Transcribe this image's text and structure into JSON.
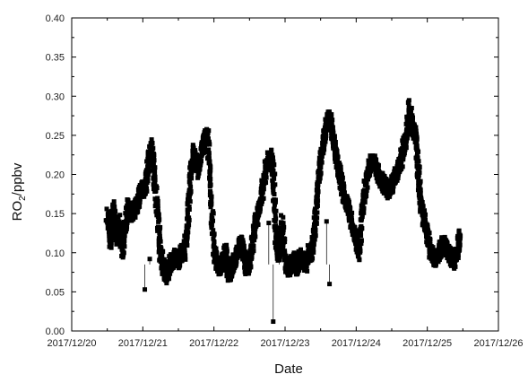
{
  "chart_data": {
    "type": "scatter",
    "title": "",
    "xlabel": "Date",
    "ylabel_main": "RO",
    "ylabel_sub": "2",
    "ylabel_tail": "/ppbv",
    "xlim": [
      "2017-12-20",
      "2017-12-26"
    ],
    "ylim": [
      0.0,
      0.4
    ],
    "x_ticks": [
      "2017/12/20",
      "2017/12/21",
      "2017/12/22",
      "2017/12/23",
      "2017/12/24",
      "2017/12/25",
      "2017/12/26"
    ],
    "y_ticks": [
      "0.00",
      "0.05",
      "0.10",
      "0.15",
      "0.20",
      "0.25",
      "0.30",
      "0.35",
      "0.40"
    ],
    "grid": false,
    "legend": "none",
    "marker_color": "#000000",
    "series": [
      {
        "x": [
          "2017-12-20 12:00",
          "2017-12-20 13:00",
          "2017-12-20 14:00",
          "2017-12-20 15:00",
          "2017-12-20 16:00",
          "2017-12-20 17:00",
          "2017-12-20 18:00",
          "2017-12-20 19:00",
          "2017-12-20 20:00",
          "2017-12-20 21:00",
          "2017-12-20 22:00",
          "2017-12-20 23:00",
          "2017-12-21 00:00",
          "2017-12-21 01:00",
          "2017-12-21 02:00",
          "2017-12-21 03:00",
          "2017-12-21 04:00",
          "2017-12-21 05:00",
          "2017-12-21 06:00",
          "2017-12-21 07:00",
          "2017-12-21 08:00",
          "2017-12-21 09:00",
          "2017-12-21 10:00",
          "2017-12-21 11:00",
          "2017-12-21 12:00",
          "2017-12-21 13:00",
          "2017-12-21 14:00",
          "2017-12-21 15:00",
          "2017-12-21 16:00",
          "2017-12-21 17:00",
          "2017-12-21 18:00",
          "2017-12-21 19:00",
          "2017-12-21 20:00",
          "2017-12-21 21:00",
          "2017-12-21 22:00",
          "2017-12-21 23:00",
          "2017-12-22 00:00",
          "2017-12-22 01:00",
          "2017-12-22 02:00",
          "2017-12-22 03:00",
          "2017-12-22 04:00",
          "2017-12-22 05:00",
          "2017-12-22 06:00",
          "2017-12-22 07:00",
          "2017-12-22 08:00",
          "2017-12-22 09:00",
          "2017-12-22 10:00",
          "2017-12-22 11:00",
          "2017-12-22 12:00",
          "2017-12-22 13:00",
          "2017-12-22 14:00",
          "2017-12-22 15:00",
          "2017-12-22 16:00",
          "2017-12-22 17:00",
          "2017-12-22 18:00",
          "2017-12-22 19:00",
          "2017-12-22 20:00",
          "2017-12-22 21:00",
          "2017-12-22 22:00",
          "2017-12-22 23:00",
          "2017-12-23 00:00",
          "2017-12-23 01:00",
          "2017-12-23 02:00",
          "2017-12-23 03:00",
          "2017-12-23 04:00",
          "2017-12-23 05:00",
          "2017-12-23 06:00",
          "2017-12-23 07:00",
          "2017-12-23 08:00",
          "2017-12-23 09:00",
          "2017-12-23 10:00",
          "2017-12-23 11:00",
          "2017-12-23 12:00",
          "2017-12-23 13:00",
          "2017-12-23 14:00",
          "2017-12-23 15:00",
          "2017-12-23 16:00",
          "2017-12-23 17:00",
          "2017-12-23 18:00",
          "2017-12-23 19:00",
          "2017-12-23 20:00",
          "2017-12-23 21:00",
          "2017-12-23 22:00",
          "2017-12-23 23:00",
          "2017-12-24 00:00",
          "2017-12-24 01:00",
          "2017-12-24 02:00",
          "2017-12-24 03:00",
          "2017-12-24 04:00",
          "2017-12-24 05:00",
          "2017-12-24 06:00",
          "2017-12-24 07:00",
          "2017-12-24 08:00",
          "2017-12-24 09:00",
          "2017-12-24 10:00",
          "2017-12-24 11:00",
          "2017-12-24 12:00",
          "2017-12-24 13:00",
          "2017-12-24 14:00",
          "2017-12-24 15:00",
          "2017-12-24 16:00",
          "2017-12-24 17:00",
          "2017-12-24 18:00",
          "2017-12-24 19:00",
          "2017-12-24 20:00",
          "2017-12-24 21:00",
          "2017-12-24 22:00",
          "2017-12-24 23:00",
          "2017-12-25 00:00",
          "2017-12-25 01:00",
          "2017-12-25 02:00",
          "2017-12-25 03:00",
          "2017-12-25 04:00",
          "2017-12-25 05:00",
          "2017-12-25 06:00",
          "2017-12-25 07:00",
          "2017-12-25 08:00",
          "2017-12-25 09:00",
          "2017-12-25 10:00",
          "2017-12-25 11:00"
        ],
        "y": [
          0.15,
          0.11,
          0.16,
          0.12,
          0.14,
          0.1,
          0.13,
          0.16,
          0.15,
          0.155,
          0.16,
          0.175,
          0.18,
          0.185,
          0.22,
          0.235,
          0.19,
          0.15,
          0.1,
          0.08,
          0.07,
          0.085,
          0.09,
          0.095,
          0.09,
          0.1,
          0.1,
          0.13,
          0.19,
          0.23,
          0.215,
          0.205,
          0.235,
          0.25,
          0.245,
          0.18,
          0.1,
          0.085,
          0.08,
          0.09,
          0.1,
          0.07,
          0.08,
          0.09,
          0.1,
          0.11,
          0.1,
          0.08,
          0.09,
          0.11,
          0.14,
          0.15,
          0.17,
          0.195,
          0.215,
          0.225,
          0.205,
          0.12,
          0.095,
          0.14,
          0.09,
          0.08,
          0.085,
          0.09,
          0.08,
          0.095,
          0.09,
          0.085,
          0.1,
          0.1,
          0.13,
          0.18,
          0.22,
          0.245,
          0.265,
          0.275,
          0.25,
          0.225,
          0.21,
          0.19,
          0.17,
          0.16,
          0.15,
          0.13,
          0.115,
          0.1,
          0.15,
          0.18,
          0.2,
          0.215,
          0.215,
          0.205,
          0.195,
          0.19,
          0.185,
          0.18,
          0.185,
          0.195,
          0.205,
          0.215,
          0.235,
          0.25,
          0.285,
          0.26,
          0.25,
          0.2,
          0.16,
          0.14,
          0.125,
          0.1,
          0.095,
          0.09,
          0.1,
          0.11,
          0.11,
          0.1,
          0.095,
          0.09,
          0.1,
          0.12
        ]
      }
    ],
    "outliers": {
      "x": [
        "2017-12-21 00:40",
        "2017-12-21 02:20",
        "2017-12-22 18:30",
        "2017-12-22 20:00",
        "2017-12-22 22:00",
        "2017-12-23 14:00",
        "2017-12-23 15:00"
      ],
      "y": [
        0.053,
        0.092,
        0.138,
        0.012,
        0.132,
        0.14,
        0.06
      ]
    }
  }
}
